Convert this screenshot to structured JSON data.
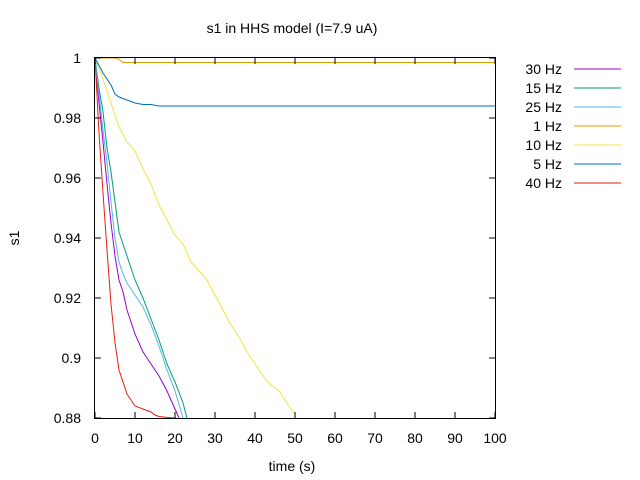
{
  "chart_data": {
    "type": "line",
    "title": "s1 in HHS model (I=7.9 uA)",
    "xlabel": "time (s)",
    "ylabel": "s1",
    "xlim": [
      0,
      100
    ],
    "ylim": [
      0.88,
      1.0
    ],
    "xticks": [
      0,
      10,
      20,
      30,
      40,
      50,
      60,
      70,
      80,
      90,
      100
    ],
    "xtick_labels": [
      "0",
      "10",
      "20",
      "30",
      "40",
      "50",
      "60",
      "70",
      "80",
      "90",
      "100"
    ],
    "yticks": [
      0.88,
      0.9,
      0.92,
      0.94,
      0.96,
      0.98,
      1.0
    ],
    "ytick_labels": [
      "0.88",
      "0.9",
      "0.92",
      "0.94",
      "0.96",
      "0.98",
      "1"
    ],
    "grid": false,
    "legend_position": "outside-right",
    "series": [
      {
        "name": "30 Hz",
        "color": "#9400d3",
        "x": [
          0,
          1,
          2,
          3,
          4,
          5,
          6,
          7,
          8,
          10,
          12,
          14,
          16,
          18,
          20,
          21
        ],
        "y": [
          1.0,
          0.985,
          0.972,
          0.958,
          0.945,
          0.934,
          0.926,
          0.922,
          0.916,
          0.908,
          0.902,
          0.898,
          0.894,
          0.889,
          0.883,
          0.88
        ]
      },
      {
        "name": "15 Hz",
        "color": "#009e73",
        "x": [
          0,
          1,
          2,
          3,
          4,
          5,
          6,
          7,
          8,
          10,
          12,
          14,
          16,
          18,
          20,
          22,
          23
        ],
        "y": [
          1.0,
          0.99,
          0.982,
          0.97,
          0.962,
          0.952,
          0.942,
          0.938,
          0.934,
          0.926,
          0.92,
          0.913,
          0.906,
          0.898,
          0.892,
          0.885,
          0.88
        ]
      },
      {
        "name": "25 Hz",
        "color": "#56b4e9",
        "x": [
          0,
          1,
          2,
          3,
          4,
          5,
          6,
          7,
          8,
          10,
          12,
          14,
          16,
          18,
          20,
          22
        ],
        "y": [
          1.0,
          0.988,
          0.976,
          0.965,
          0.952,
          0.94,
          0.932,
          0.928,
          0.925,
          0.921,
          0.917,
          0.911,
          0.904,
          0.896,
          0.889,
          0.88
        ]
      },
      {
        "name": "1 Hz",
        "color": "#e69f00",
        "x": [
          0,
          5,
          6,
          7,
          100
        ],
        "y": [
          1.0,
          1.0,
          0.9995,
          0.9985,
          0.9985
        ]
      },
      {
        "name": "10 Hz",
        "color": "#f0e442",
        "x": [
          0,
          2,
          4,
          6,
          8,
          10,
          12,
          14,
          16,
          18,
          20,
          22,
          24,
          26,
          28,
          30,
          32,
          34,
          36,
          38,
          40,
          42,
          44,
          46,
          48,
          50
        ],
        "y": [
          1.0,
          0.993,
          0.985,
          0.977,
          0.972,
          0.969,
          0.963,
          0.958,
          0.951,
          0.946,
          0.941,
          0.938,
          0.932,
          0.929,
          0.926,
          0.921,
          0.916,
          0.911,
          0.907,
          0.902,
          0.898,
          0.894,
          0.891,
          0.889,
          0.885,
          0.881
        ]
      },
      {
        "name": "5 Hz",
        "color": "#0072b2",
        "x": [
          0,
          2,
          4,
          5,
          6,
          8,
          10,
          12,
          14,
          16,
          100
        ],
        "y": [
          1.0,
          0.995,
          0.991,
          0.988,
          0.987,
          0.986,
          0.985,
          0.9845,
          0.9845,
          0.984,
          0.984
        ]
      },
      {
        "name": "40 Hz",
        "color": "#e51e10",
        "x": [
          0,
          1,
          2,
          3,
          4,
          5,
          6,
          7,
          8,
          9,
          10,
          12,
          14,
          15,
          16,
          18,
          20
        ],
        "y": [
          1.0,
          0.975,
          0.955,
          0.936,
          0.918,
          0.905,
          0.896,
          0.892,
          0.888,
          0.886,
          0.884,
          0.883,
          0.882,
          0.881,
          0.8805,
          0.8802,
          0.88
        ]
      }
    ]
  }
}
